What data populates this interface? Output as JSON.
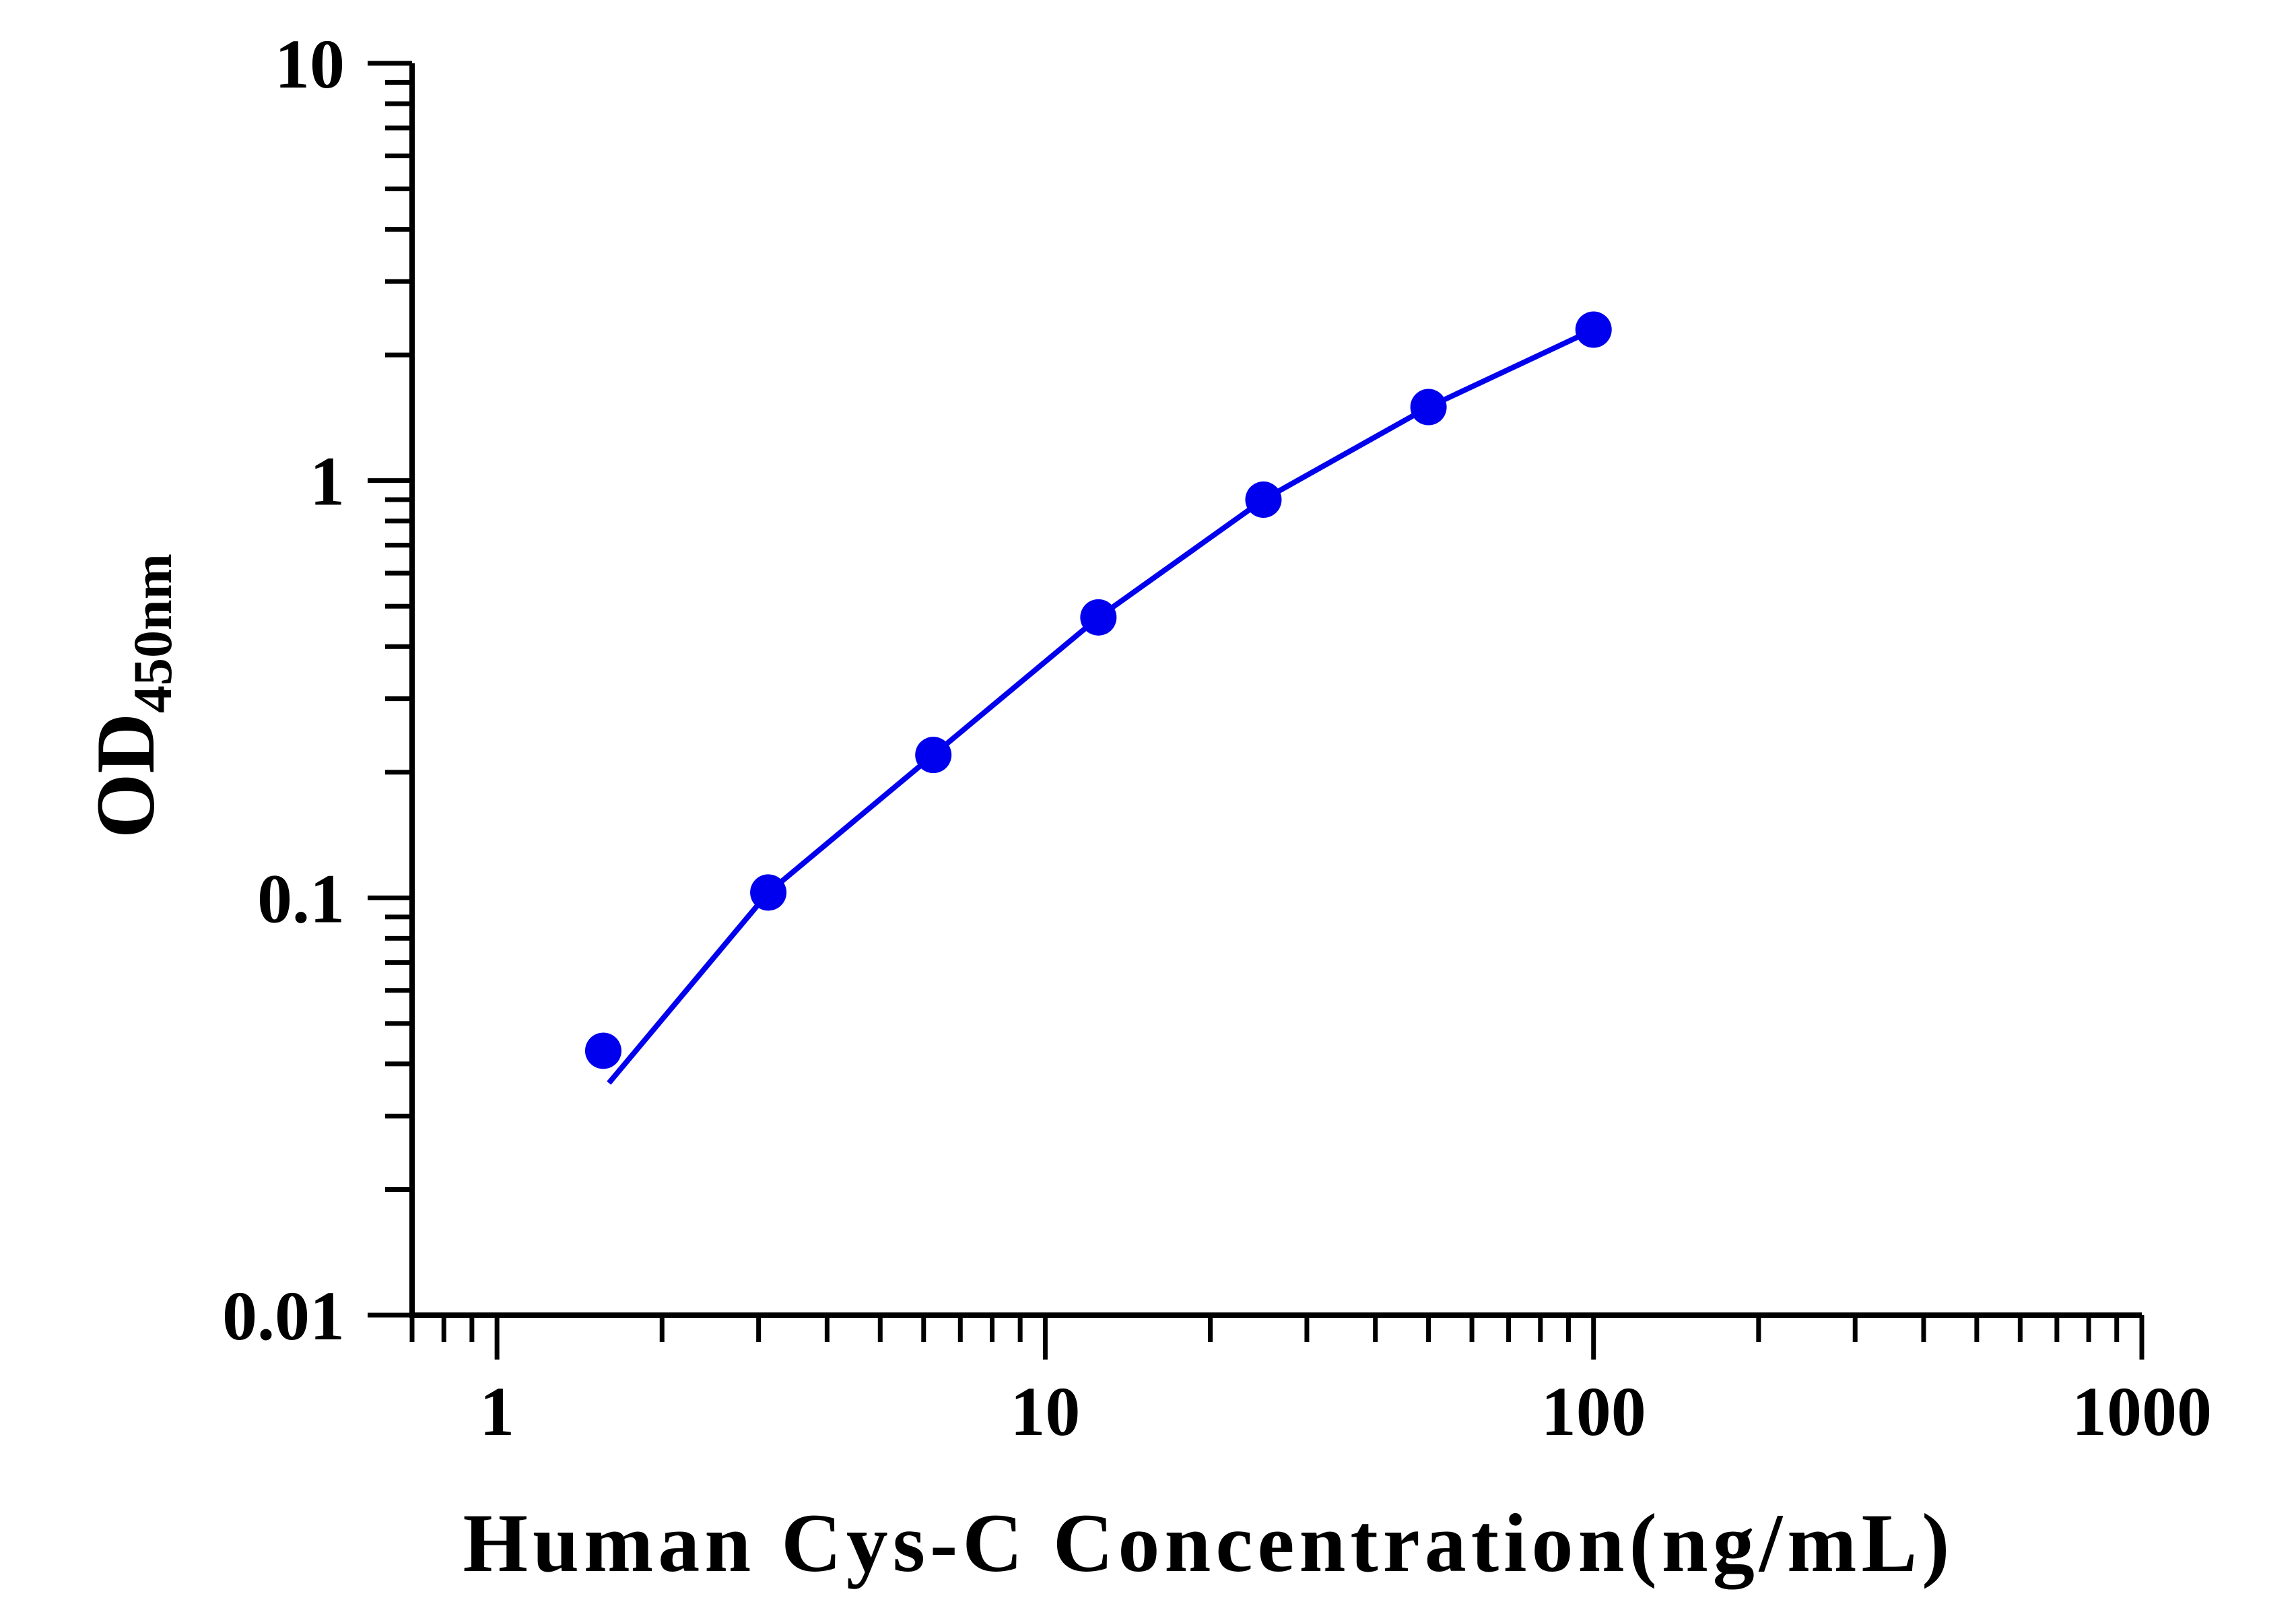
{
  "chart_data": {
    "type": "line",
    "title": "",
    "xlabel": "Human Cys-C Concentration(ng/mL)",
    "ylabel": {
      "main": "OD",
      "subscript": "450nm"
    },
    "x_scale": "log",
    "y_scale": "log",
    "xlim": [
      0.7,
      1000
    ],
    "ylim": [
      0.01,
      10
    ],
    "x_tick_labels": [
      "1",
      "10",
      "100",
      "1000"
    ],
    "y_tick_labels": [
      "0.01",
      "0.1",
      "1",
      "10"
    ],
    "grid": false,
    "legend": "none",
    "series": [
      {
        "color": "#0000ee",
        "points": [
          {
            "x": 1.5625,
            "y": 0.043
          },
          {
            "x": 3.125,
            "y": 0.103
          },
          {
            "x": 6.25,
            "y": 0.22
          },
          {
            "x": 12.5,
            "y": 0.47
          },
          {
            "x": 25,
            "y": 0.9
          },
          {
            "x": 50,
            "y": 1.5
          },
          {
            "x": 100,
            "y": 2.3
          }
        ],
        "fit_curve": [
          {
            "x": 1.6,
            "y": 0.036
          },
          {
            "x": 3.125,
            "y": 0.103
          },
          {
            "x": 6.25,
            "y": 0.22
          },
          {
            "x": 12.5,
            "y": 0.47
          },
          {
            "x": 25,
            "y": 0.9
          },
          {
            "x": 50,
            "y": 1.5
          },
          {
            "x": 100,
            "y": 2.3
          }
        ]
      }
    ]
  }
}
